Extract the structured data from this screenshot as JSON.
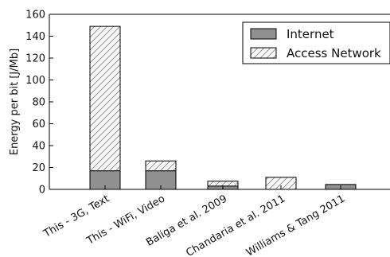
{
  "chart_data": {
    "type": "bar",
    "stacked": true,
    "title": "",
    "xlabel": "",
    "ylabel": "Energy per bit [J/Mb]",
    "ylim": [
      0,
      160
    ],
    "yticks": [
      "0",
      "20",
      "40",
      "60",
      "80",
      "100",
      "120",
      "140",
      "160"
    ],
    "categories": [
      "This - 3G, Text",
      "This - WiFi, Video",
      "Baliga et al. 2009",
      "Chandaria et al. 2011",
      "Williams & Tang 2011"
    ],
    "series": [
      {
        "name": "Internet",
        "values": [
          17,
          17,
          3,
          0,
          4.5
        ],
        "color": "#909090",
        "hatch": false
      },
      {
        "name": "Access Network",
        "values": [
          132,
          9,
          4.5,
          11,
          0
        ],
        "color": "#f2f2f2",
        "hatch": true
      }
    ],
    "legend_position": "top-right",
    "grid": false
  }
}
